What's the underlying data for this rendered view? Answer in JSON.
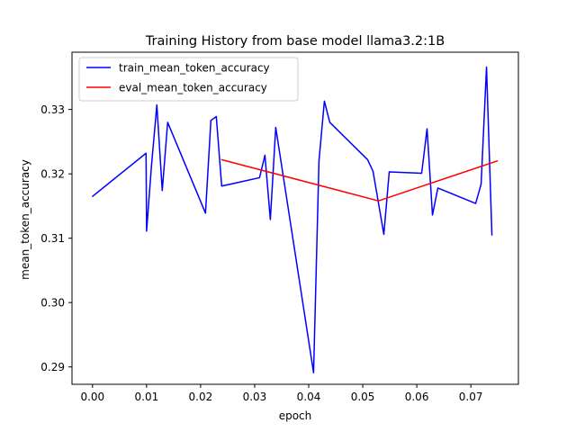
{
  "chart_data": {
    "type": "line",
    "title": "Training History from base model llama3.2:1B",
    "xlabel": "epoch",
    "ylabel": "mean_token_accuracy",
    "xlim": [
      -0.0038,
      0.0788
    ],
    "ylim": [
      0.2873,
      0.3389
    ],
    "xticks": [
      0.0,
      0.01,
      0.02,
      0.03,
      0.04,
      0.05,
      0.06,
      0.07
    ],
    "xtick_labels": [
      "0.00",
      "0.01",
      "0.02",
      "0.03",
      "0.04",
      "0.05",
      "0.06",
      "0.07"
    ],
    "yticks": [
      0.29,
      0.3,
      0.31,
      0.32,
      0.33
    ],
    "ytick_labels": [
      "0.29",
      "0.30",
      "0.31",
      "0.32",
      "0.33"
    ],
    "grid": false,
    "legend_position": "upper-left",
    "series": [
      {
        "name": "train_mean_token_accuracy",
        "color": "#0000ff",
        "x": [
          0.0,
          0.0099,
          0.01,
          0.0109,
          0.0119,
          0.0129,
          0.0139,
          0.0209,
          0.0219,
          0.0229,
          0.0239,
          0.0309,
          0.0319,
          0.0329,
          0.0339,
          0.0409,
          0.0419,
          0.0429,
          0.0439,
          0.0509,
          0.0519,
          0.0539,
          0.0549,
          0.0609,
          0.0619,
          0.0629,
          0.0639,
          0.0709,
          0.0719,
          0.0729,
          0.0739
        ],
        "y": [
          0.3165,
          0.3232,
          0.3111,
          0.3212,
          0.3307,
          0.3174,
          0.328,
          0.3139,
          0.3283,
          0.3289,
          0.3181,
          0.3194,
          0.3229,
          0.3129,
          0.3272,
          0.2891,
          0.322,
          0.3313,
          0.328,
          0.3222,
          0.3204,
          0.3106,
          0.3203,
          0.3201,
          0.327,
          0.3136,
          0.3178,
          0.3154,
          0.3184,
          0.3366,
          0.3105
        ]
      },
      {
        "name": "eval_mean_token_accuracy",
        "color": "#ff0000",
        "x": [
          0.0239,
          0.0529,
          0.0749
        ],
        "y": [
          0.3222,
          0.3158,
          0.322
        ]
      }
    ]
  }
}
